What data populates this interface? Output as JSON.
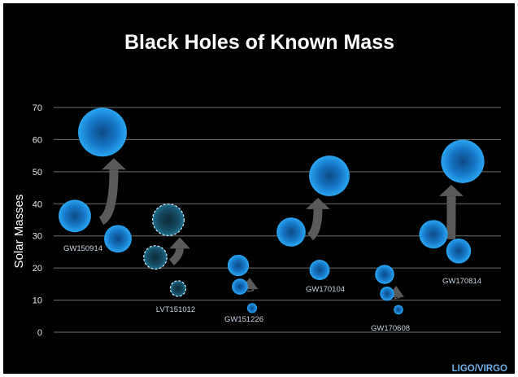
{
  "chart_data": {
    "type": "scatter",
    "title": "Black Holes of Known Mass",
    "ylabel": "Solar Masses",
    "ylim": [
      0,
      70
    ],
    "yticks": [
      0,
      10,
      20,
      30,
      40,
      50,
      60,
      70
    ],
    "grid": true,
    "credit": "LIGO/VIRGO",
    "colors": {
      "confirmed": "#1f8fe0",
      "candidate": "#1a5a78",
      "arrow": "#5a5a5a",
      "grid": "#6e6e6e"
    },
    "events": [
      {
        "name": "GW150914",
        "candidate": false,
        "primary": 36.2,
        "secondary": 29.1,
        "final": 62.3
      },
      {
        "name": "LVT151012",
        "candidate": true,
        "primary": 23.3,
        "secondary": 13.6,
        "final": 35.0
      },
      {
        "name": "GW151226",
        "candidate": false,
        "primary": 14.2,
        "secondary": 7.5,
        "final": 20.8
      },
      {
        "name": "GW170104",
        "candidate": false,
        "primary": 31.2,
        "secondary": 19.4,
        "final": 48.7
      },
      {
        "name": "GW170608",
        "candidate": false,
        "primary": 12.0,
        "secondary": 7.0,
        "final": 18.0
      },
      {
        "name": "GW170814",
        "candidate": false,
        "primary": 30.5,
        "secondary": 25.3,
        "final": 53.2
      }
    ]
  }
}
